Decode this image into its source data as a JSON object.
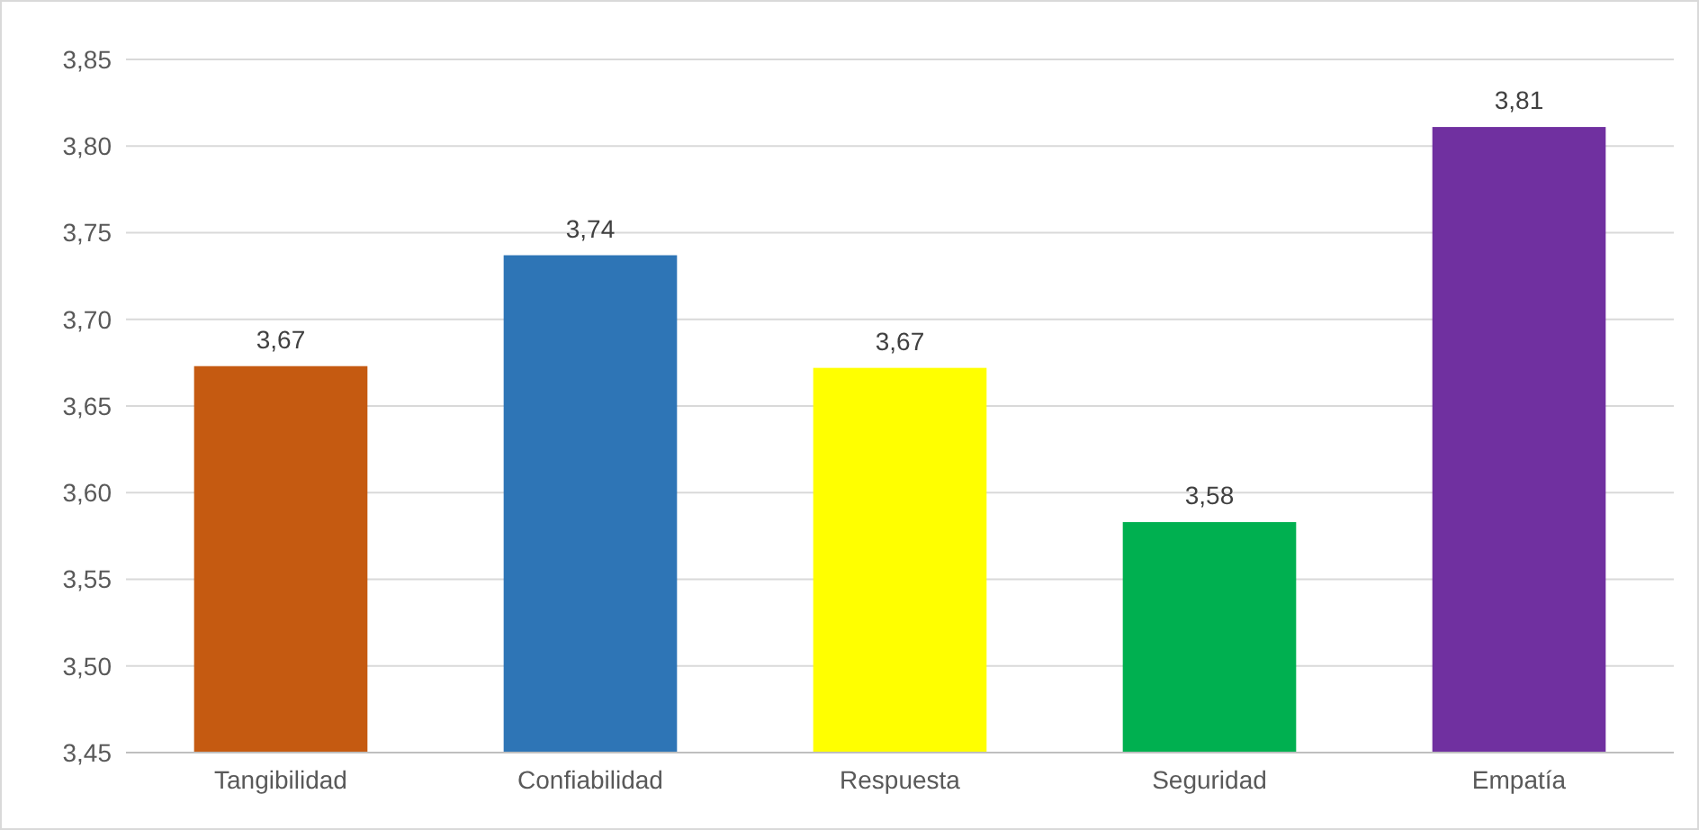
{
  "chart_data": {
    "type": "bar",
    "categories": [
      "Tangibilidad",
      "Confiabilidad",
      "Respuesta",
      "Seguridad",
      "Empatía"
    ],
    "values": [
      3.673,
      3.737,
      3.672,
      3.583,
      3.811
    ],
    "value_labels": [
      "3,67",
      "3,74",
      "3,67",
      "3,58",
      "3,81"
    ],
    "colors": [
      "#c55a11",
      "#2e75b6",
      "#ffff00",
      "#00b050",
      "#7030a0"
    ],
    "ylim": [
      3.45,
      3.85
    ],
    "yticks": [
      {
        "value": 3.45,
        "label": "3,45"
      },
      {
        "value": 3.5,
        "label": "3,50"
      },
      {
        "value": 3.55,
        "label": "3,55"
      },
      {
        "value": 3.6,
        "label": "3,60"
      },
      {
        "value": 3.65,
        "label": "3,65"
      },
      {
        "value": 3.7,
        "label": "3,70"
      },
      {
        "value": 3.75,
        "label": "3,75"
      },
      {
        "value": 3.8,
        "label": "3,80"
      },
      {
        "value": 3.85,
        "label": "3,85"
      }
    ],
    "grid": "y"
  }
}
